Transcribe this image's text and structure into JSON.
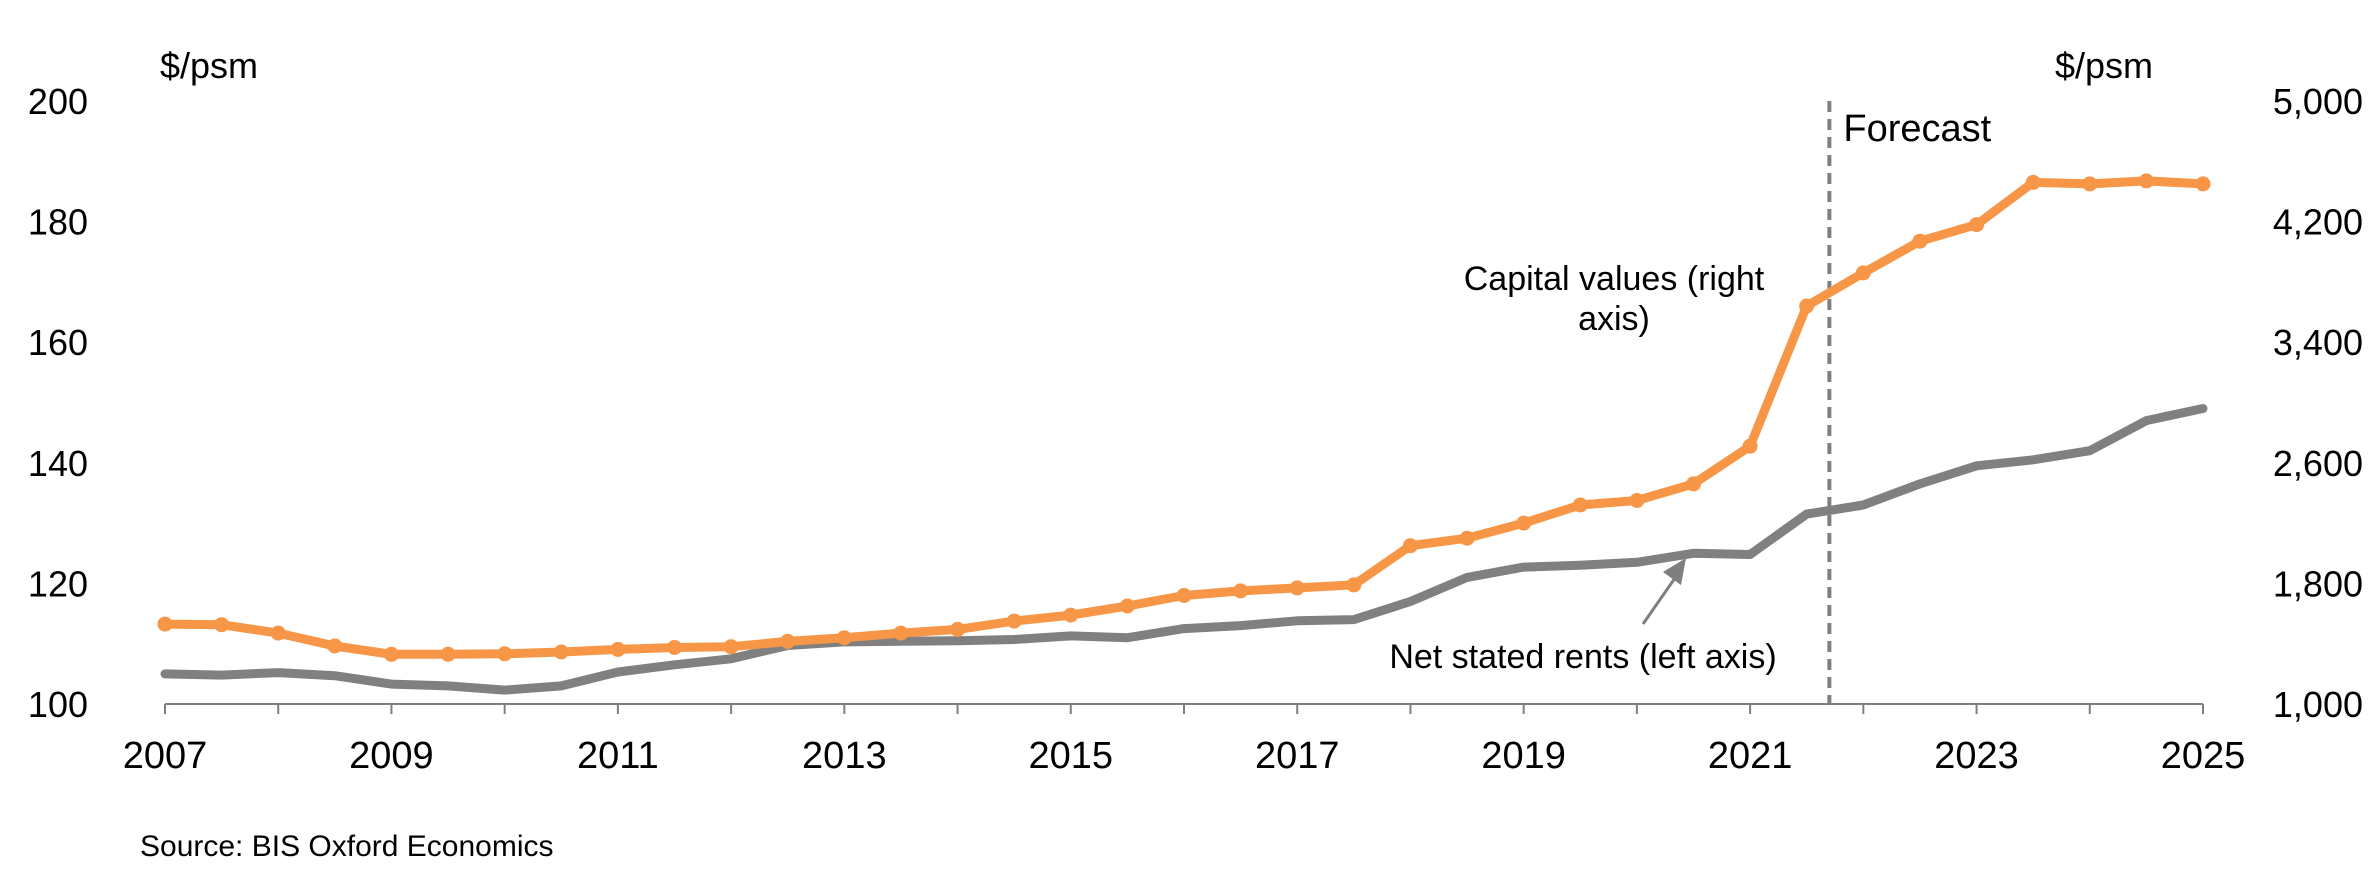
{
  "chart_data": {
    "type": "line",
    "x": [
      2007.0,
      2007.5,
      2008.0,
      2008.5,
      2009.0,
      2009.5,
      2010.0,
      2010.5,
      2011.0,
      2011.5,
      2012.0,
      2012.5,
      2013.0,
      2013.5,
      2014.0,
      2014.5,
      2015.0,
      2015.5,
      2016.0,
      2016.5,
      2017.0,
      2017.5,
      2018.0,
      2018.5,
      2019.0,
      2019.5,
      2020.0,
      2020.5,
      2021.0,
      2021.5,
      2022.0,
      2022.5,
      2023.0,
      2023.5,
      2024.0,
      2024.5,
      2025.0
    ],
    "series": [
      {
        "name": "Capital values (right axis)",
        "axis": "right",
        "color": "#F79646",
        "markers": true,
        "values": [
          1530,
          1526,
          1470,
          1385,
          1330,
          1330,
          1333,
          1345,
          1362,
          1375,
          1380,
          1415,
          1440,
          1470,
          1495,
          1550,
          1590,
          1650,
          1720,
          1750,
          1770,
          1790,
          2050,
          2100,
          2200,
          2320,
          2350,
          2460,
          2710,
          3640,
          3860,
          4070,
          4180,
          4460,
          4450,
          4470,
          4450
        ]
      },
      {
        "name": "Net stated rents (left axis)",
        "axis": "left",
        "color": "#808080",
        "markers": false,
        "values": [
          105.0,
          104.8,
          105.2,
          104.7,
          103.3,
          103.0,
          102.3,
          103.0,
          105.3,
          106.5,
          107.5,
          109.7,
          110.3,
          110.4,
          110.5,
          110.7,
          111.3,
          111.0,
          112.5,
          113.0,
          113.8,
          114.0,
          117.0,
          121.0,
          122.7,
          123.0,
          123.5,
          125.0,
          124.8,
          131.5,
          133.0,
          136.5,
          139.5,
          140.5,
          142.0,
          147.0,
          149.0
        ]
      }
    ],
    "y_left": {
      "label": "$/psm",
      "range": [
        100,
        200
      ],
      "ticks": [
        100,
        120,
        140,
        160,
        180,
        200
      ],
      "tick_labels": [
        "100",
        "120",
        "140",
        "160",
        "180",
        "200"
      ]
    },
    "y_right": {
      "label": "$/psm",
      "range": [
        1000,
        5000
      ],
      "ticks": [
        1000,
        1800,
        2600,
        3400,
        4200,
        5000
      ],
      "tick_labels": [
        "1,000",
        "1,800",
        "2,600",
        "3,400",
        "4,200",
        "5,000"
      ]
    },
    "x_axis": {
      "range": [
        2007,
        2025
      ],
      "ticks": [
        2007,
        2009,
        2011,
        2013,
        2015,
        2017,
        2019,
        2021,
        2023,
        2025
      ],
      "tick_labels": [
        "2007",
        "2009",
        "2011",
        "2013",
        "2015",
        "2017",
        "2019",
        "2021",
        "2023",
        "2025"
      ]
    },
    "forecast_line": {
      "x": 2021.7,
      "label": "Forecast"
    },
    "annotations": {
      "capital_values_line1": "Capital values (right",
      "capital_values_line2": "axis)",
      "net_rents": "Net stated rents (left axis)"
    },
    "grid": false,
    "legend": "none",
    "source": "Source: BIS Oxford Economics"
  }
}
